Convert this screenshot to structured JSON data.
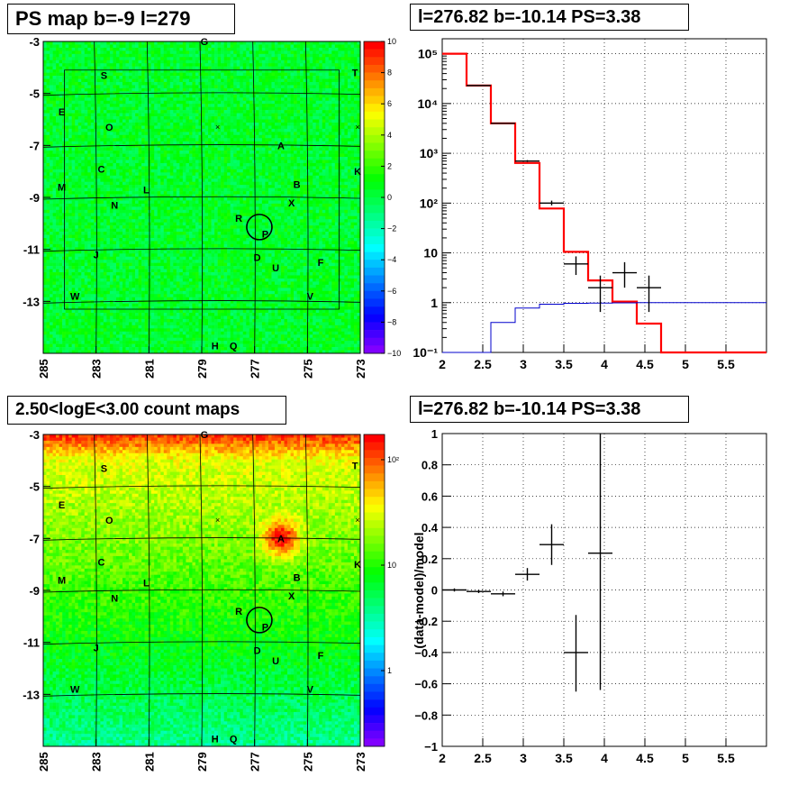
{
  "panels": {
    "tl_title": "PS map b=-9 l=279",
    "tr_title": "l=276.82 b=-10.14 PS=3.38",
    "bl_title": "2.50<logE<3.00 count maps",
    "br_title": "l=276.82 b=-10.14 PS=3.38"
  },
  "chart_data": [
    {
      "type": "heatmap",
      "name": "PS map",
      "title": "PS map b=-9 l=279",
      "x_ticks": [
        "285",
        "283",
        "281",
        "279",
        "277",
        "275",
        "273"
      ],
      "y_ticks": [
        "-3",
        "-5",
        "-7",
        "-9",
        "-11",
        "-13"
      ],
      "xlim": [
        285,
        273
      ],
      "ylim": [
        -3,
        -15
      ],
      "colorbar": {
        "min": -10,
        "max": 10,
        "ticks": [
          "10",
          "8",
          "6",
          "4",
          "2",
          "0",
          "−2",
          "−4",
          "−6",
          "−8",
          "−10"
        ]
      },
      "source_labels": [
        {
          "t": "G",
          "l": 278.9,
          "b": -3.0
        },
        {
          "t": "S",
          "l": 282.7,
          "b": -4.3
        },
        {
          "t": "T",
          "l": 273.2,
          "b": -4.2
        },
        {
          "t": "E",
          "l": 284.3,
          "b": -5.7
        },
        {
          "t": "O",
          "l": 282.5,
          "b": -6.3
        },
        {
          "t": "A",
          "l": 276.0,
          "b": -7.0
        },
        {
          "t": "C",
          "l": 282.8,
          "b": -7.9
        },
        {
          "t": "K",
          "l": 273.1,
          "b": -8.0
        },
        {
          "t": "B",
          "l": 275.4,
          "b": -8.5
        },
        {
          "t": "M",
          "l": 284.3,
          "b": -8.6
        },
        {
          "t": "L",
          "l": 281.1,
          "b": -8.7
        },
        {
          "t": "X",
          "l": 275.6,
          "b": -9.2
        },
        {
          "t": "N",
          "l": 282.3,
          "b": -9.3
        },
        {
          "t": "R",
          "l": 277.6,
          "b": -9.8
        },
        {
          "t": "P",
          "l": 276.6,
          "b": -10.4
        },
        {
          "t": "J",
          "l": 283.0,
          "b": -11.2
        },
        {
          "t": "D",
          "l": 276.9,
          "b": -11.3
        },
        {
          "t": "U",
          "l": 276.2,
          "b": -11.7
        },
        {
          "t": "F",
          "l": 274.5,
          "b": -11.5
        },
        {
          "t": "W",
          "l": 283.8,
          "b": -12.8
        },
        {
          "t": "V",
          "l": 274.9,
          "b": -12.8
        },
        {
          "t": "H",
          "l": 278.5,
          "b": -14.7
        },
        {
          "t": "Q",
          "l": 277.8,
          "b": -14.7
        }
      ]
    },
    {
      "type": "line",
      "name": "spectrum",
      "title": "l=276.82 b=-10.14 PS=3.38",
      "xlim": [
        2,
        6
      ],
      "ylog": true,
      "ylim": [
        0.1,
        200000
      ],
      "x_ticks": [
        "2",
        "2.5",
        "3",
        "3.5",
        "4",
        "4.5",
        "5",
        "5.5"
      ],
      "y_ticks": [
        "10⁻¹",
        "1",
        "10",
        "10²",
        "10³",
        "10⁴",
        "10⁵"
      ],
      "series": [
        {
          "role": "model_total",
          "color": "#ff0000",
          "edges": [
            2,
            2.3,
            2.6,
            2.9,
            3.2,
            3.5,
            3.8,
            4.1,
            4.4,
            4.7,
            5.0,
            5.3,
            5.6,
            5.9,
            6.0
          ],
          "values": [
            100000,
            23000,
            4000,
            640,
            78,
            10.5,
            2.8,
            1.05,
            0.38,
            0.1,
            0.1,
            0.1,
            0.1,
            0.1
          ]
        },
        {
          "role": "model_source",
          "color": "#0000cc",
          "edges": [
            2,
            2.3,
            2.6,
            2.9,
            3.2,
            3.5,
            3.8,
            4.1,
            4.4,
            4.7,
            5.0,
            5.3,
            5.6,
            5.9,
            6.0
          ],
          "values": [
            0.1,
            0.1,
            0.4,
            0.78,
            0.93,
            0.97,
            0.98,
            0.99,
            1.0,
            1.0,
            1.0,
            1.0,
            1.0,
            1.0
          ]
        },
        {
          "role": "data",
          "color": "#000000",
          "points": [
            {
              "x": 2.45,
              "y": 23000,
              "xerr": 0.15,
              "ylo": 22800,
              "yhi": 23200
            },
            {
              "x": 2.75,
              "y": 4000,
              "xerr": 0.15,
              "ylo": 3950,
              "yhi": 4050
            },
            {
              "x": 3.05,
              "y": 700,
              "xerr": 0.15,
              "ylo": 670,
              "yhi": 730
            },
            {
              "x": 3.35,
              "y": 100,
              "xerr": 0.15,
              "ylo": 90,
              "yhi": 112
            },
            {
              "x": 3.65,
              "y": 6,
              "xerr": 0.15,
              "ylo": 3.6,
              "yhi": 8.5
            },
            {
              "x": 3.95,
              "y": 2,
              "xerr": 0.15,
              "ylo": 0.65,
              "yhi": 3.5
            },
            {
              "x": 4.25,
              "y": 4,
              "xerr": 0.15,
              "ylo": 2.0,
              "yhi": 6.5
            },
            {
              "x": 4.55,
              "y": 2,
              "xerr": 0.15,
              "ylo": 0.65,
              "yhi": 3.5
            }
          ]
        }
      ]
    },
    {
      "type": "heatmap",
      "name": "count map",
      "title": "2.50<logE<3.00 count maps",
      "x_ticks": [
        "285",
        "283",
        "281",
        "279",
        "277",
        "275",
        "273"
      ],
      "y_ticks": [
        "-3",
        "-5",
        "-7",
        "-9",
        "-11",
        "-13"
      ],
      "xlim": [
        285,
        273
      ],
      "ylim": [
        -3,
        -15
      ],
      "colorbar": {
        "log": true,
        "ticks": [
          "10²",
          "10",
          "1"
        ],
        "tick_values": [
          100,
          10,
          1
        ]
      },
      "hotspot": {
        "l": 276.0,
        "b": -7.0
      }
    },
    {
      "type": "scatter",
      "name": "residuals",
      "title": "l=276.82 b=-10.14 PS=3.38",
      "ylabel": "(data-model)/model",
      "xlim": [
        2,
        6
      ],
      "ylim": [
        -1,
        1
      ],
      "x_ticks": [
        "2",
        "2.5",
        "3",
        "3.5",
        "4",
        "4.5",
        "5",
        "5.5"
      ],
      "y_ticks": [
        "1",
        "0.8",
        "0.6",
        "0.4",
        "0.2",
        "0",
        "−0.2",
        "−0.4",
        "−0.6",
        "−0.8",
        "−1"
      ],
      "points": [
        {
          "x": 2.15,
          "y": 0.0,
          "xerr": 0.15,
          "ylo": -0.01,
          "yhi": 0.01
        },
        {
          "x": 2.45,
          "y": -0.01,
          "xerr": 0.15,
          "ylo": -0.02,
          "yhi": 0.0
        },
        {
          "x": 2.75,
          "y": -0.025,
          "xerr": 0.15,
          "ylo": -0.04,
          "yhi": -0.01
        },
        {
          "x": 3.05,
          "y": 0.1,
          "xerr": 0.15,
          "ylo": 0.06,
          "yhi": 0.14
        },
        {
          "x": 3.35,
          "y": 0.29,
          "xerr": 0.15,
          "ylo": 0.16,
          "yhi": 0.42
        },
        {
          "x": 3.65,
          "y": -0.4,
          "xerr": 0.15,
          "ylo": -0.65,
          "yhi": -0.16
        },
        {
          "x": 3.95,
          "y": 0.235,
          "xerr": 0.15,
          "ylo": -0.64,
          "yhi": 1.0
        }
      ]
    }
  ]
}
